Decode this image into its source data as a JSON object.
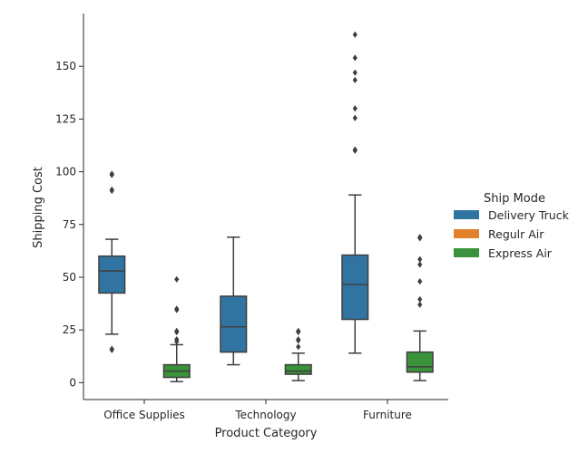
{
  "chart_data": {
    "type": "box",
    "xlabel": "Product Category",
    "ylabel": "Shipping Cost",
    "categories": [
      "Office Supplies",
      "Technology",
      "Furniture"
    ],
    "ylim": [
      -8,
      175
    ],
    "yticks": [
      0,
      25,
      50,
      75,
      100,
      125,
      150
    ],
    "legend": {
      "title": "Ship Mode",
      "position": "right",
      "entries": [
        {
          "name": "Delivery Truck",
          "color": "#3274a1"
        },
        {
          "name": "Regulr Air",
          "color": "#e1812c"
        },
        {
          "name": "Express Air",
          "color": "#3a923a"
        }
      ]
    },
    "series": [
      {
        "name": "Delivery Truck",
        "color": "#3274a1",
        "boxes": [
          {
            "category": "Office Supplies",
            "whisker_low": 23,
            "q1": 42.5,
            "median": 53,
            "q3": 60,
            "whisker_high": 68,
            "outliers": [
              15.5,
              16,
              91,
              91.5,
              98.5,
              99
            ]
          },
          {
            "category": "Technology",
            "whisker_low": 8.5,
            "q1": 14.5,
            "median": 26.5,
            "q3": 41,
            "whisker_high": 69,
            "outliers": []
          },
          {
            "category": "Furniture",
            "whisker_low": 14,
            "q1": 30,
            "median": 46.5,
            "q3": 60.5,
            "whisker_high": 89,
            "outliers": [
              110,
              110.5,
              125.5,
              130,
              143.5,
              147,
              154,
              165
            ]
          }
        ]
      },
      {
        "name": "Regulr Air",
        "color": "#e1812c",
        "boxes": []
      },
      {
        "name": "Express Air",
        "color": "#3a923a",
        "boxes": [
          {
            "category": "Office Supplies",
            "whisker_low": 0.5,
            "q1": 2.5,
            "median": 5.5,
            "q3": 8.5,
            "whisker_high": 18,
            "outliers": [
              19.5,
              20.5,
              24,
              24.5,
              34.5,
              35,
              49
            ]
          },
          {
            "category": "Technology",
            "whisker_low": 1,
            "q1": 4,
            "median": 5.5,
            "q3": 8.5,
            "whisker_high": 14,
            "outliers": [
              17,
              20,
              20.5,
              24,
              24.5
            ]
          },
          {
            "category": "Furniture",
            "whisker_low": 1,
            "q1": 5,
            "median": 7.5,
            "q3": 14.5,
            "whisker_high": 24.5,
            "outliers": [
              37,
              39.5,
              48,
              56,
              58.5,
              68.5,
              69
            ]
          }
        ]
      }
    ]
  }
}
